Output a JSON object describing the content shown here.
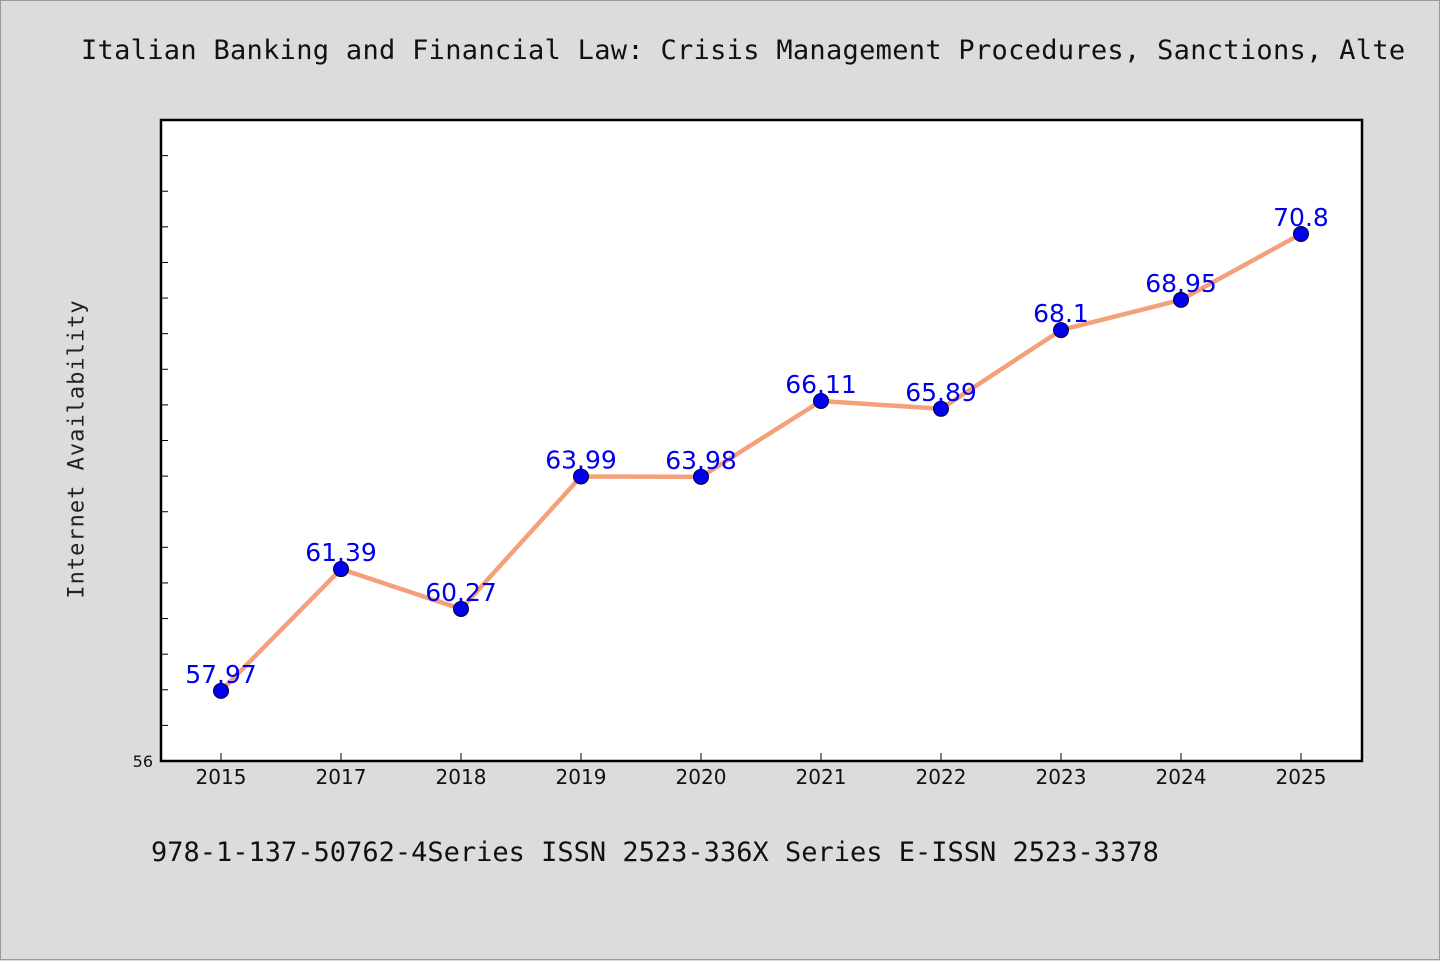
{
  "title": "Italian Banking and Financial Law: Crisis Management Procedures, Sanctions, Alte",
  "footer": "978-1-137-50762-4Series ISSN 2523-336X Series E-ISSN 2523-3378",
  "colors": {
    "background": "#dcdcdc",
    "plot_background": "#ffffff",
    "line": "#f4a07a",
    "marker": "#0000ee",
    "data_label": "#0000ee"
  },
  "chart_data": {
    "type": "line",
    "title": "Italian Banking and Financial Law: Crisis Management Procedures, Sanctions, Alte",
    "xlabel": "",
    "ylabel": "Internet Availability",
    "categories": [
      "2015",
      "2017",
      "2018",
      "2019",
      "2020",
      "2021",
      "2022",
      "2023",
      "2024",
      "2025"
    ],
    "series": [
      {
        "values": [
          57.97,
          61.39,
          60.27,
          63.99,
          63.98,
          66.11,
          65.89,
          68.1,
          68.95,
          70.8
        ]
      }
    ],
    "data_labels": [
      "57.97",
      "61.39",
      "60.27",
      "63.99",
      "63.98",
      "66.11",
      "65.89",
      "68.1",
      "68.95",
      "70.8"
    ],
    "ylim": [
      56,
      74
    ],
    "y_tick_labels": [
      "56"
    ],
    "grid": false,
    "legend": "none"
  }
}
